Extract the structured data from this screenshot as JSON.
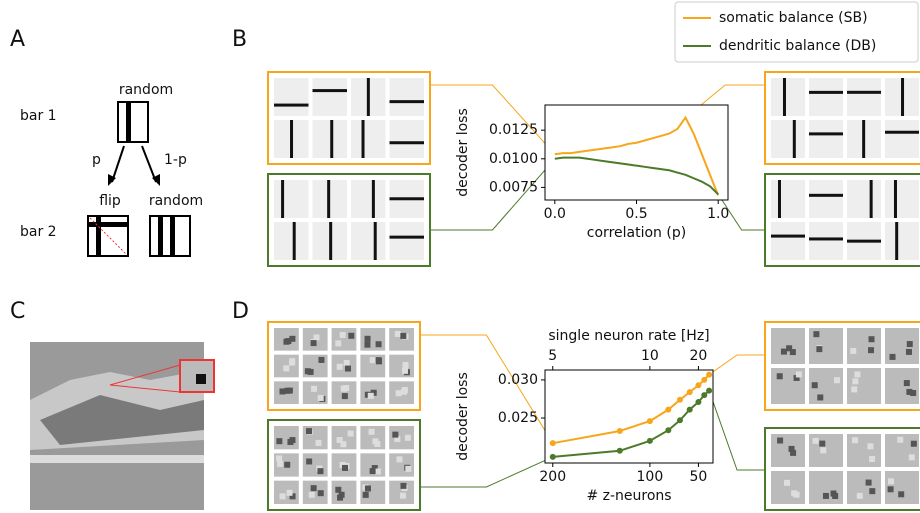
{
  "figure": {
    "panel_labels": [
      "A",
      "B",
      "C",
      "D"
    ],
    "diagram": {
      "top_label": "random",
      "bar1": "bar 1",
      "branch_left": "p",
      "branch_right": "1-p",
      "left_label": "flip",
      "right_label": "random",
      "bar2": "bar 2"
    }
  },
  "chart_data": [
    {
      "type": "line",
      "xlabel": "correlation (p)",
      "ylabel": "decoder loss",
      "x": [
        0,
        0.05,
        0.1,
        0.15,
        0.2,
        0.25,
        0.3,
        0.35,
        0.4,
        0.45,
        0.5,
        0.55,
        0.6,
        0.65,
        0.7,
        0.75,
        0.8,
        0.85,
        0.9,
        0.95,
        1.0
      ],
      "series": [
        {
          "name": "somatic balance (SB)",
          "color": "#f7a61c",
          "values": [
            0.0104,
            0.0105,
            0.0105,
            0.0106,
            0.0107,
            0.0108,
            0.0109,
            0.011,
            0.0111,
            0.0113,
            0.0114,
            0.0116,
            0.0118,
            0.012,
            0.0122,
            0.0126,
            0.0136,
            0.0122,
            0.0104,
            0.0086,
            0.0068
          ]
        },
        {
          "name": "dendritic balance (DB)",
          "color": "#4b7a2a",
          "values": [
            0.01,
            0.0101,
            0.0101,
            0.0101,
            0.01,
            0.0099,
            0.0098,
            0.0097,
            0.0096,
            0.0095,
            0.0094,
            0.0093,
            0.0092,
            0.0091,
            0.009,
            0.0088,
            0.0086,
            0.0083,
            0.008,
            0.0076,
            0.0069
          ]
        }
      ],
      "xlim": [
        -0.06,
        1.06
      ],
      "ylim": [
        0.0064,
        0.0147
      ],
      "xticks": [
        {
          "value": 0,
          "label": "0.0"
        },
        {
          "value": 0.5,
          "label": "0.5"
        },
        {
          "value": 1,
          "label": "1.0"
        }
      ],
      "yticks": [
        0.0075,
        {
          "value": 0.01,
          "label": "0.0100"
        },
        0.0125
      ],
      "legend": "top-right"
    },
    {
      "type": "line",
      "xlabel": "# z-neurons",
      "ylabel": "decoder loss",
      "x2label": "single neuron rate [Hz]",
      "x": [
        200,
        131,
        100,
        81,
        69,
        59,
        50,
        44,
        39
      ],
      "series": [
        {
          "color": "#f7a61c",
          "values": [
            0.0217,
            0.0233,
            0.0246,
            0.0261,
            0.0274,
            0.0284,
            0.0293,
            0.03,
            0.0307
          ]
        },
        {
          "color": "#4b7a2a",
          "values": [
            0.0199,
            0.0207,
            0.022,
            0.0234,
            0.0247,
            0.0261,
            0.0271,
            0.028,
            0.0286
          ]
        }
      ],
      "xlim": [
        208,
        35
      ],
      "ylim": [
        0.0191,
        0.0313
      ],
      "xticks": [
        200,
        100,
        50
      ],
      "x2ticks": [
        {
          "value": 200,
          "label": "5"
        },
        {
          "value": 100,
          "label": "10"
        },
        {
          "value": 50,
          "label": "20"
        }
      ],
      "yticks": [
        0.025,
        {
          "value": 0.03,
          "label": "0.030"
        }
      ],
      "markers": true
    }
  ]
}
